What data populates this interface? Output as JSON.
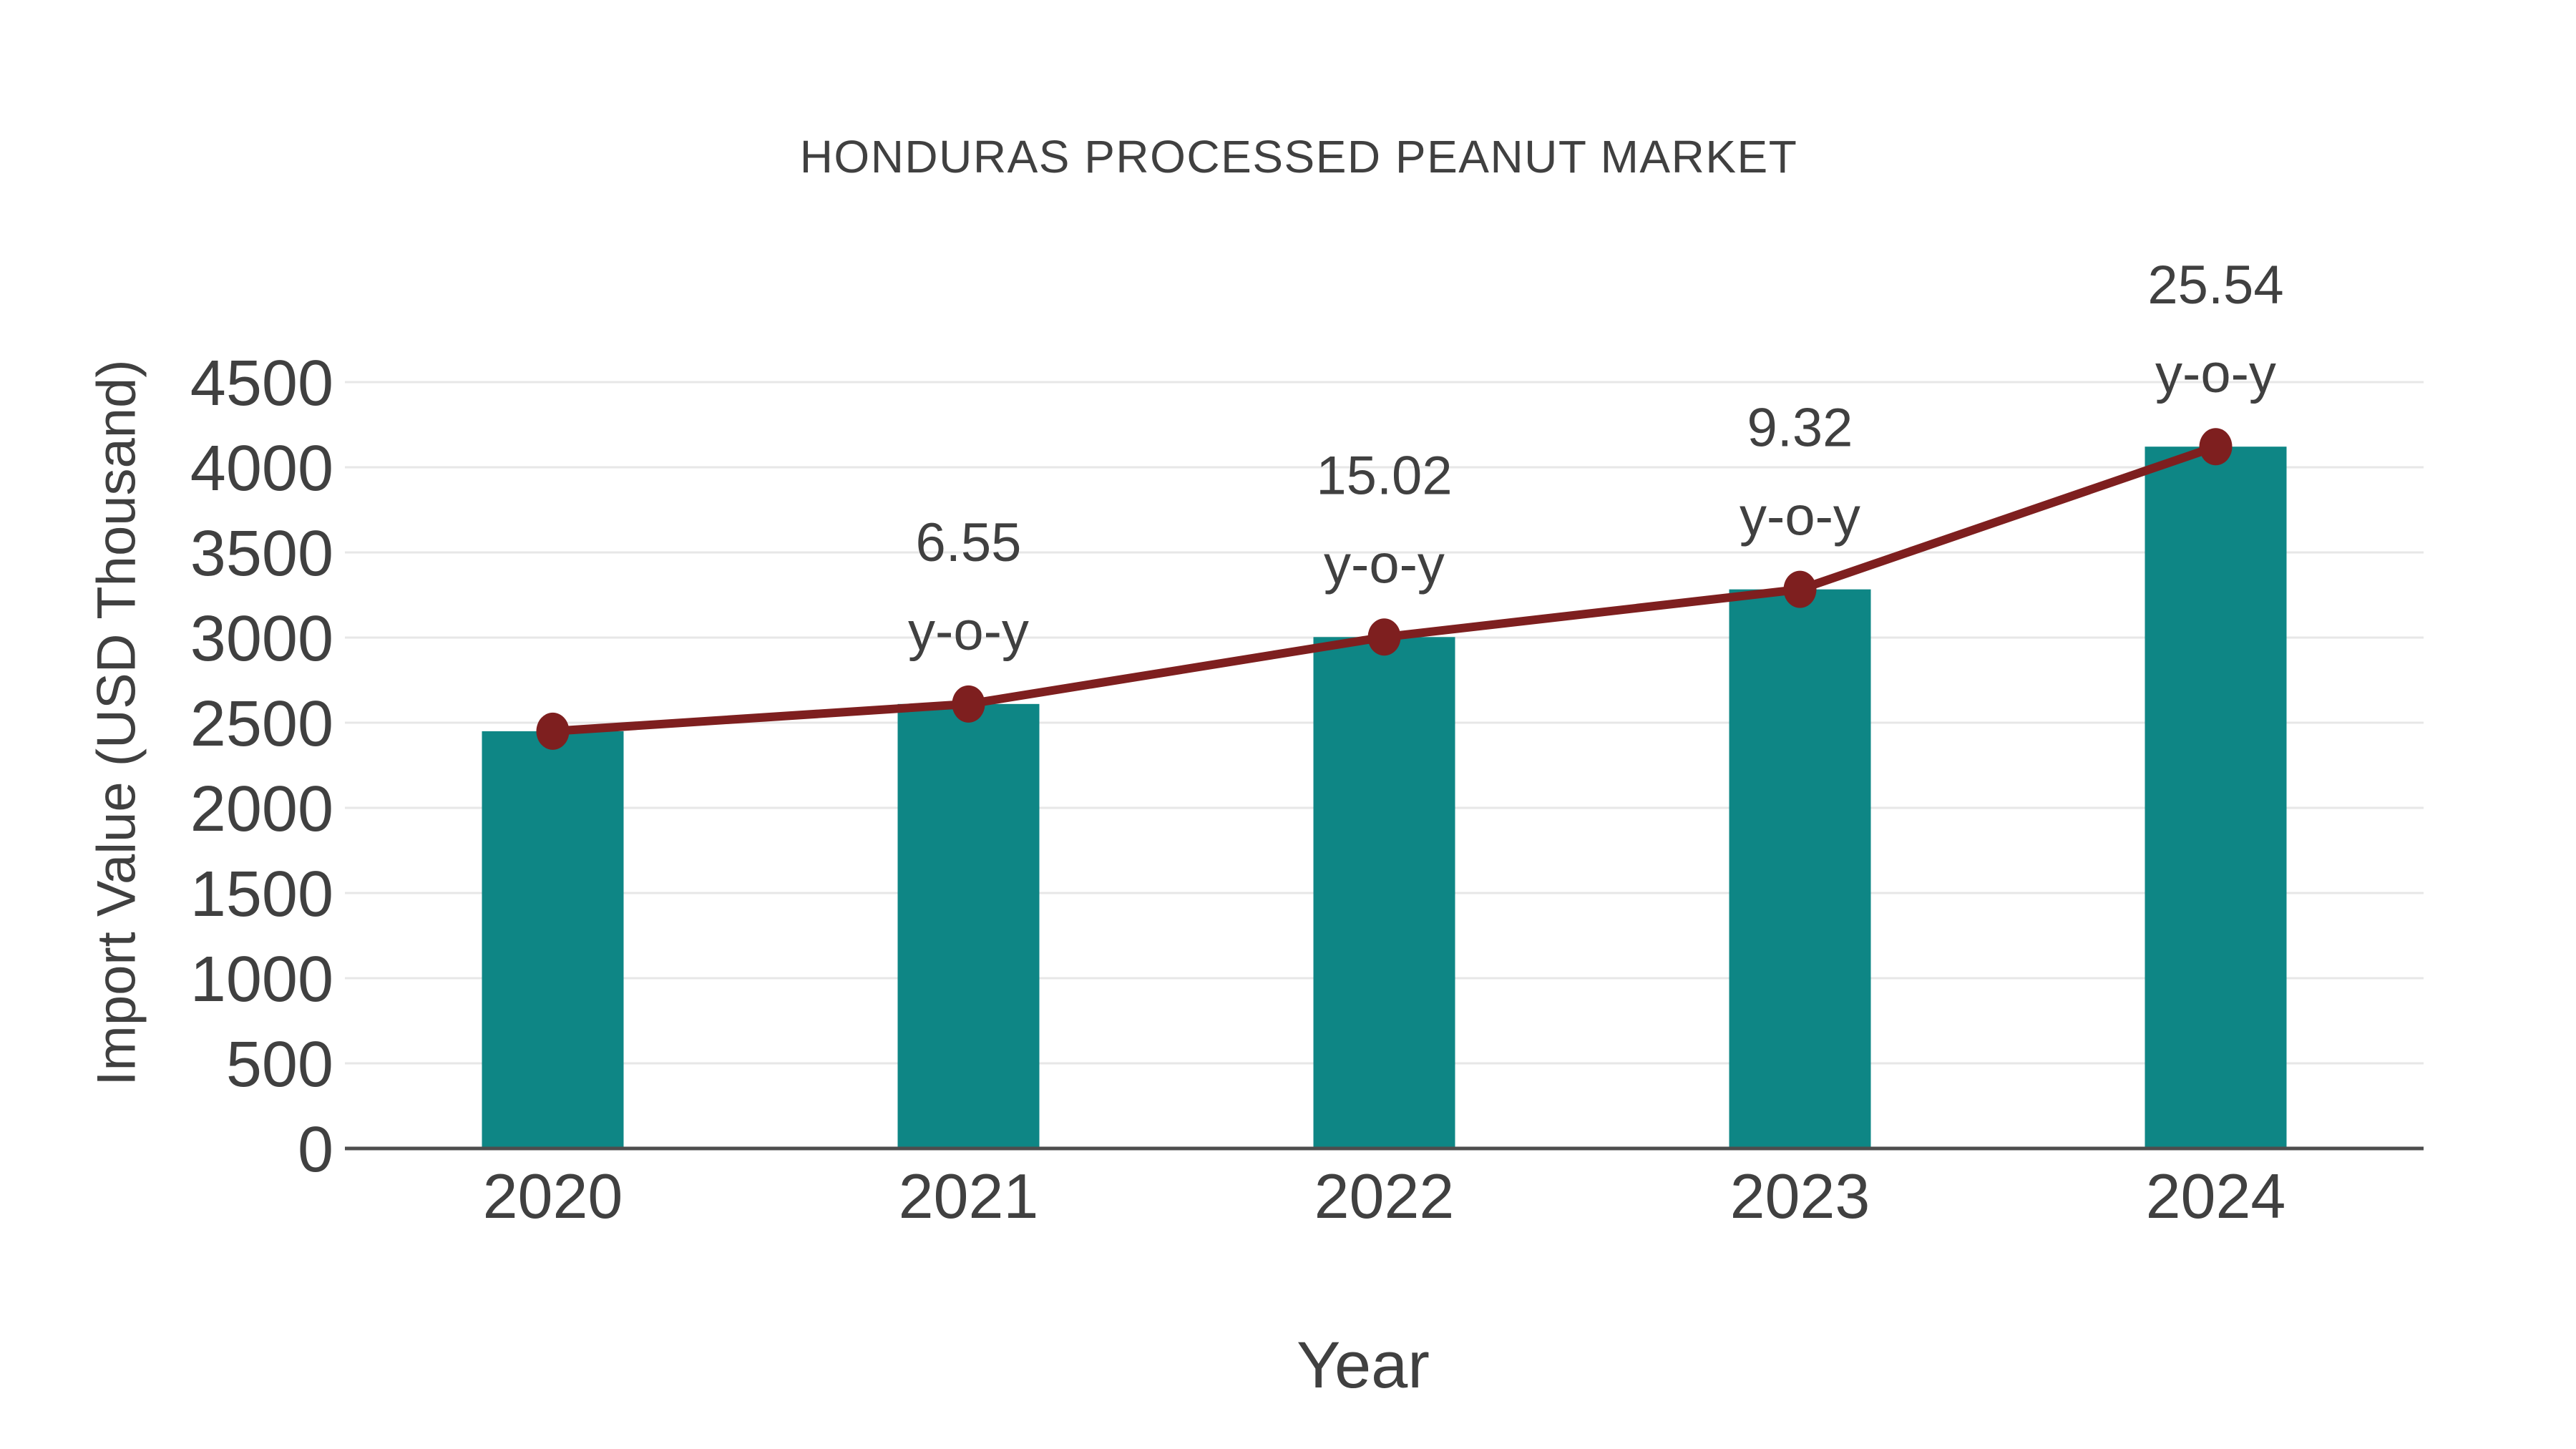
{
  "title": "HONDURAS PROCESSED PEANUT MARKET",
  "colors": {
    "bar": "#0E8685",
    "line": "#7E1F1F",
    "text": "#404040",
    "grid": "#E7E7E7",
    "axis": "#4D4D4D",
    "background": "#FFFFFF"
  },
  "chart_data": {
    "type": "bar",
    "title": "HONDURAS PROCESSED PEANUT MARKET",
    "xlabel": "Year",
    "ylabel": "Import Value (USD Thousand)",
    "categories": [
      "2020",
      "2021",
      "2022",
      "2023",
      "2024"
    ],
    "series": [
      {
        "name": "Import Value (USD Thousand)",
        "type": "bar",
        "values": [
          2450,
          2610,
          3003,
          3283,
          4121
        ]
      },
      {
        "name": "Import value trend",
        "type": "line",
        "values": [
          2450,
          2610,
          3003,
          3283,
          4121
        ]
      }
    ],
    "annotations": [
      {
        "category": "2021",
        "value": "6.55",
        "suffix": "y-o-y"
      },
      {
        "category": "2022",
        "value": "15.02",
        "suffix": "y-o-y"
      },
      {
        "category": "2023",
        "value": "9.32",
        "suffix": "y-o-y"
      },
      {
        "category": "2024",
        "value": "25.54",
        "suffix": "y-o-y"
      }
    ],
    "ylim": [
      0,
      4500
    ],
    "yticks": [
      0,
      500,
      1000,
      1500,
      2000,
      2500,
      3000,
      3500,
      4000,
      4500
    ],
    "grid": true,
    "legend": "none"
  }
}
